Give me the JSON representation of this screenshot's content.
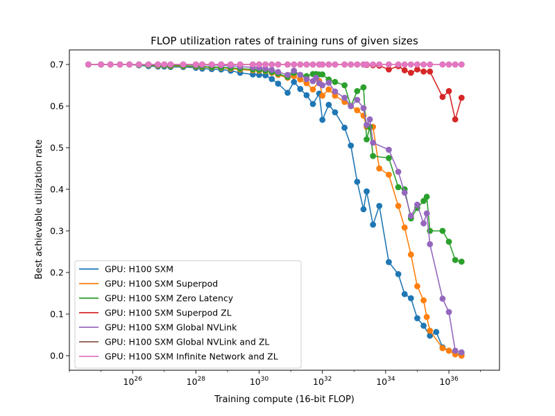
{
  "chart_data": {
    "type": "line",
    "title": "FLOP utilization rates of training runs of given sizes",
    "xlabel": "Training compute (16-bit FLOP)",
    "ylabel": "Best achievable utilization rate",
    "xscale": "log",
    "xlim_log10": [
      24.0,
      37.6
    ],
    "ylim": [
      -0.035,
      0.735
    ],
    "xticks": [
      {
        "exp": 26,
        "label": "10",
        "sup": "26"
      },
      {
        "exp": 28,
        "label": "10",
        "sup": "28"
      },
      {
        "exp": 30,
        "label": "10",
        "sup": "30"
      },
      {
        "exp": 32,
        "label": "10",
        "sup": "32"
      },
      {
        "exp": 34,
        "label": "10",
        "sup": "34"
      },
      {
        "exp": 36,
        "label": "10",
        "sup": "36"
      }
    ],
    "yticks": [
      0.0,
      0.1,
      0.2,
      0.3,
      0.4,
      0.5,
      0.6,
      0.7
    ],
    "ytick_labels": [
      "0.0",
      "0.1",
      "0.2",
      "0.3",
      "0.4",
      "0.5",
      "0.6",
      "0.7"
    ],
    "grid": false,
    "legend_position": "lower-left",
    "series": [
      {
        "name": "GPU: H100 SXM",
        "color": "#1f77b4",
        "x_log10": [
          24.6,
          25.0,
          25.3,
          25.6,
          25.9,
          26.2,
          26.5,
          26.8,
          27.0,
          27.2,
          27.6,
          28.0,
          28.2,
          28.5,
          28.8,
          29.1,
          29.4,
          29.8,
          30.0,
          30.2,
          30.4,
          30.6,
          30.9,
          31.1,
          31.3,
          31.5,
          31.7,
          31.9,
          32.0,
          32.2,
          32.4,
          32.7,
          32.9,
          33.1,
          33.3,
          33.4,
          33.6,
          33.8,
          34.1,
          34.4,
          34.6,
          34.8,
          35.0,
          35.2,
          35.4,
          35.6,
          35.8,
          36.0,
          36.2,
          36.4
        ],
        "y": [
          0.7,
          0.7,
          0.7,
          0.7,
          0.7,
          0.698,
          0.696,
          0.695,
          0.695,
          0.694,
          0.694,
          0.692,
          0.69,
          0.689,
          0.688,
          0.685,
          0.68,
          0.676,
          0.675,
          0.674,
          0.665,
          0.654,
          0.632,
          0.658,
          0.641,
          0.626,
          0.605,
          0.63,
          0.567,
          0.603,
          0.585,
          0.548,
          0.505,
          0.418,
          0.352,
          0.395,
          0.315,
          0.36,
          0.225,
          0.196,
          0.148,
          0.138,
          0.09,
          0.072,
          0.048,
          0.057,
          0.02,
          0.012,
          0.005,
          0.002
        ]
      },
      {
        "name": "GPU: H100 SXM Superpod",
        "color": "#ff7f0e",
        "x_log10": [
          24.6,
          25.0,
          25.3,
          25.6,
          25.9,
          26.2,
          26.5,
          26.8,
          27.0,
          27.2,
          27.6,
          28.0,
          28.2,
          28.5,
          28.8,
          29.1,
          29.4,
          29.8,
          30.0,
          30.2,
          30.4,
          30.6,
          30.9,
          31.1,
          31.3,
          31.5,
          31.7,
          31.9,
          32.0,
          32.2,
          32.4,
          32.7,
          32.9,
          33.1,
          33.3,
          33.4,
          33.6,
          33.8,
          34.1,
          34.4,
          34.6,
          34.8,
          35.0,
          35.2,
          35.3,
          35.4,
          35.8,
          36.0,
          36.2,
          36.4
        ],
        "y": [
          0.7,
          0.7,
          0.7,
          0.7,
          0.7,
          0.699,
          0.698,
          0.697,
          0.697,
          0.696,
          0.696,
          0.695,
          0.694,
          0.693,
          0.692,
          0.69,
          0.688,
          0.686,
          0.685,
          0.684,
          0.68,
          0.675,
          0.668,
          0.672,
          0.664,
          0.655,
          0.64,
          0.66,
          0.625,
          0.64,
          0.625,
          0.61,
          0.6,
          0.59,
          0.577,
          0.55,
          0.55,
          0.45,
          0.435,
          0.36,
          0.308,
          0.243,
          0.167,
          0.133,
          0.093,
          0.06,
          0.018,
          0.012,
          0.003,
          0.0
        ]
      },
      {
        "name": "GPU: H100 SXM Zero Latency",
        "color": "#2ca02c",
        "x_log10": [
          24.6,
          25.0,
          25.3,
          25.6,
          25.9,
          26.2,
          26.5,
          26.8,
          27.0,
          27.2,
          27.6,
          28.0,
          28.2,
          28.5,
          28.8,
          29.1,
          29.4,
          29.8,
          30.0,
          30.2,
          30.4,
          30.6,
          30.9,
          31.1,
          31.3,
          31.5,
          31.7,
          31.8,
          31.9,
          32.0,
          32.2,
          32.4,
          32.7,
          32.9,
          33.1,
          33.3,
          33.4,
          33.5,
          33.6,
          34.1,
          34.4,
          34.6,
          34.8,
          35.0,
          35.2,
          35.3,
          35.4,
          35.8,
          36.0,
          36.2,
          36.4
        ],
        "y": [
          0.7,
          0.7,
          0.7,
          0.7,
          0.7,
          0.699,
          0.698,
          0.698,
          0.697,
          0.697,
          0.697,
          0.696,
          0.695,
          0.694,
          0.693,
          0.692,
          0.69,
          0.688,
          0.687,
          0.685,
          0.682,
          0.678,
          0.67,
          0.68,
          0.675,
          0.672,
          0.677,
          0.677,
          0.676,
          0.676,
          0.664,
          0.658,
          0.65,
          0.6,
          0.636,
          0.645,
          0.52,
          0.55,
          0.48,
          0.475,
          0.405,
          0.4,
          0.33,
          0.355,
          0.372,
          0.382,
          0.3,
          0.3,
          0.274,
          0.23,
          0.226
        ]
      },
      {
        "name": "GPU: H100 SXM Superpod ZL",
        "color": "#d62728",
        "x_log10": [
          24.6,
          25.0,
          25.3,
          25.6,
          25.9,
          26.2,
          26.5,
          26.8,
          27.0,
          27.2,
          27.6,
          28.0,
          28.2,
          28.5,
          28.8,
          29.1,
          29.4,
          29.8,
          30.0,
          30.2,
          30.4,
          30.6,
          30.9,
          31.1,
          31.3,
          31.5,
          31.7,
          31.9,
          32.0,
          32.2,
          32.4,
          32.7,
          32.9,
          33.1,
          33.3,
          33.4,
          33.6,
          33.8,
          34.1,
          34.4,
          34.6,
          34.8,
          35.0,
          35.2,
          35.4,
          35.8,
          36.0,
          36.2,
          36.4
        ],
        "y": [
          0.7,
          0.7,
          0.7,
          0.7,
          0.7,
          0.7,
          0.7,
          0.7,
          0.7,
          0.7,
          0.7,
          0.7,
          0.7,
          0.7,
          0.7,
          0.7,
          0.7,
          0.7,
          0.7,
          0.7,
          0.7,
          0.7,
          0.7,
          0.7,
          0.7,
          0.7,
          0.7,
          0.7,
          0.7,
          0.7,
          0.7,
          0.7,
          0.7,
          0.7,
          0.7,
          0.699,
          0.698,
          0.697,
          0.688,
          0.696,
          0.686,
          0.68,
          0.688,
          0.683,
          0.683,
          0.622,
          0.636,
          0.568,
          0.62
        ]
      },
      {
        "name": "GPU: H100 SXM Global NVLink",
        "color": "#9467bd",
        "x_log10": [
          24.6,
          25.0,
          25.3,
          25.6,
          25.9,
          26.2,
          26.5,
          26.8,
          27.0,
          27.2,
          27.6,
          28.0,
          28.2,
          28.5,
          28.8,
          29.1,
          29.4,
          29.8,
          30.0,
          30.2,
          30.4,
          30.6,
          30.9,
          31.1,
          31.3,
          31.5,
          31.7,
          31.8,
          31.9,
          32.0,
          32.2,
          32.4,
          32.7,
          32.9,
          33.1,
          33.3,
          33.4,
          33.5,
          33.6,
          34.1,
          34.4,
          34.6,
          34.8,
          35.0,
          35.2,
          35.3,
          35.4,
          35.8,
          36.0,
          36.2,
          36.4
        ],
        "y": [
          0.7,
          0.7,
          0.7,
          0.7,
          0.7,
          0.7,
          0.7,
          0.7,
          0.7,
          0.7,
          0.7,
          0.699,
          0.699,
          0.699,
          0.698,
          0.697,
          0.695,
          0.693,
          0.692,
          0.69,
          0.687,
          0.682,
          0.675,
          0.685,
          0.675,
          0.665,
          0.66,
          0.668,
          0.655,
          0.65,
          0.656,
          0.635,
          0.62,
          0.6,
          0.615,
          0.595,
          0.555,
          0.568,
          0.512,
          0.495,
          0.442,
          0.392,
          0.336,
          0.363,
          0.318,
          0.342,
          0.268,
          0.137,
          0.105,
          0.012,
          0.008
        ]
      },
      {
        "name": "GPU: H100 SXM Global NVLink and ZL",
        "color": "#8c564b",
        "x_log10": [
          24.6,
          25.0,
          25.3,
          25.6,
          25.9,
          26.2,
          26.5,
          26.8,
          27.0,
          27.2,
          27.6,
          28.0,
          28.2,
          28.5,
          28.8,
          29.1,
          29.4,
          29.8,
          30.0,
          30.2,
          30.4,
          30.6,
          30.9,
          31.1,
          31.3,
          31.5,
          31.7,
          31.9,
          32.0,
          32.2,
          32.4,
          32.7,
          32.9,
          33.1,
          33.3,
          33.4,
          33.6,
          33.8,
          34.1,
          34.4,
          34.6,
          34.8,
          35.0,
          35.2,
          35.4,
          35.8,
          36.0,
          36.2,
          36.4
        ],
        "y": [
          0.7,
          0.7,
          0.7,
          0.7,
          0.7,
          0.7,
          0.7,
          0.7,
          0.7,
          0.7,
          0.7,
          0.7,
          0.7,
          0.7,
          0.7,
          0.7,
          0.7,
          0.7,
          0.7,
          0.7,
          0.7,
          0.7,
          0.7,
          0.7,
          0.7,
          0.7,
          0.7,
          0.7,
          0.7,
          0.7,
          0.7,
          0.7,
          0.7,
          0.7,
          0.7,
          0.7,
          0.7,
          0.7,
          0.7,
          0.7,
          0.7,
          0.7,
          0.7,
          0.7,
          0.7,
          0.7,
          0.7,
          0.7,
          0.7
        ]
      },
      {
        "name": "GPU: H100 SXM Infinite Network and ZL",
        "color": "#e377c2",
        "x_log10": [
          24.6,
          25.0,
          25.3,
          25.6,
          25.9,
          26.2,
          26.5,
          26.8,
          27.0,
          27.2,
          27.6,
          28.0,
          28.2,
          28.5,
          28.8,
          29.1,
          29.4,
          29.8,
          30.0,
          30.2,
          30.4,
          30.6,
          30.9,
          31.1,
          31.3,
          31.5,
          31.7,
          31.9,
          32.0,
          32.2,
          32.4,
          32.7,
          32.9,
          33.1,
          33.3,
          33.4,
          33.6,
          33.8,
          34.1,
          34.4,
          34.6,
          34.8,
          35.0,
          35.2,
          35.4,
          35.8,
          36.0,
          36.2,
          36.4
        ],
        "y": [
          0.7,
          0.7,
          0.7,
          0.7,
          0.7,
          0.7,
          0.7,
          0.7,
          0.7,
          0.7,
          0.7,
          0.7,
          0.7,
          0.7,
          0.7,
          0.7,
          0.7,
          0.7,
          0.7,
          0.7,
          0.7,
          0.7,
          0.7,
          0.7,
          0.7,
          0.7,
          0.7,
          0.7,
          0.7,
          0.7,
          0.7,
          0.7,
          0.7,
          0.7,
          0.7,
          0.7,
          0.7,
          0.7,
          0.7,
          0.7,
          0.7,
          0.7,
          0.7,
          0.7,
          0.7,
          0.7,
          0.7,
          0.7,
          0.7
        ]
      }
    ]
  }
}
